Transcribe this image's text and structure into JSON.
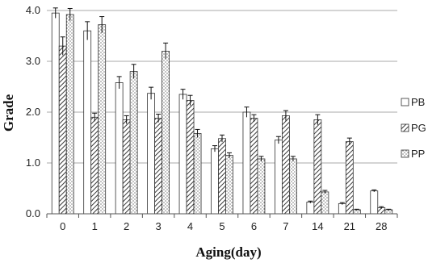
{
  "chart_data": {
    "type": "bar",
    "title": "",
    "xlabel": "Aging(day)",
    "ylabel": "Grade",
    "ylim": [
      0,
      4.0
    ],
    "yticks": [
      "0.0",
      "1.0",
      "2.0",
      "3.0",
      "4.0"
    ],
    "grid": true,
    "legend_position": "right",
    "categories": [
      "0",
      "1",
      "2",
      "3",
      "4",
      "5",
      "6",
      "7",
      "14",
      "21",
      "28"
    ],
    "series": [
      {
        "name": "PB",
        "pattern": "plain",
        "values": [
          3.95,
          3.6,
          2.58,
          2.37,
          2.35,
          1.28,
          2.0,
          1.45,
          0.23,
          0.2,
          0.45
        ],
        "errors": [
          0.1,
          0.18,
          0.12,
          0.12,
          0.1,
          0.06,
          0.1,
          0.07,
          0.02,
          0.02,
          0.02
        ]
      },
      {
        "name": "PG",
        "pattern": "hatch",
        "values": [
          3.3,
          1.9,
          1.85,
          1.88,
          2.23,
          1.48,
          1.88,
          1.93,
          1.85,
          1.42,
          0.12
        ]
      },
      {
        "name": "PP",
        "pattern": "dots",
        "values": [
          3.92,
          3.72,
          2.8,
          3.2,
          1.58,
          1.15,
          1.08,
          1.08,
          0.43,
          0.08,
          0.08
        ]
      }
    ],
    "series_errors": {
      "PG": [
        0.18,
        0.08,
        0.08,
        0.08,
        0.1,
        0.07,
        0.07,
        0.1,
        0.1,
        0.07,
        0.02
      ],
      "PP": [
        0.12,
        0.16,
        0.14,
        0.16,
        0.08,
        0.05,
        0.05,
        0.05,
        0.03,
        0.01,
        0.01
      ]
    },
    "colors": {
      "bar_fill": "#ffffff",
      "bar_stroke": "#333333",
      "grid": "#a8a8a8",
      "axis": "#555555"
    }
  }
}
